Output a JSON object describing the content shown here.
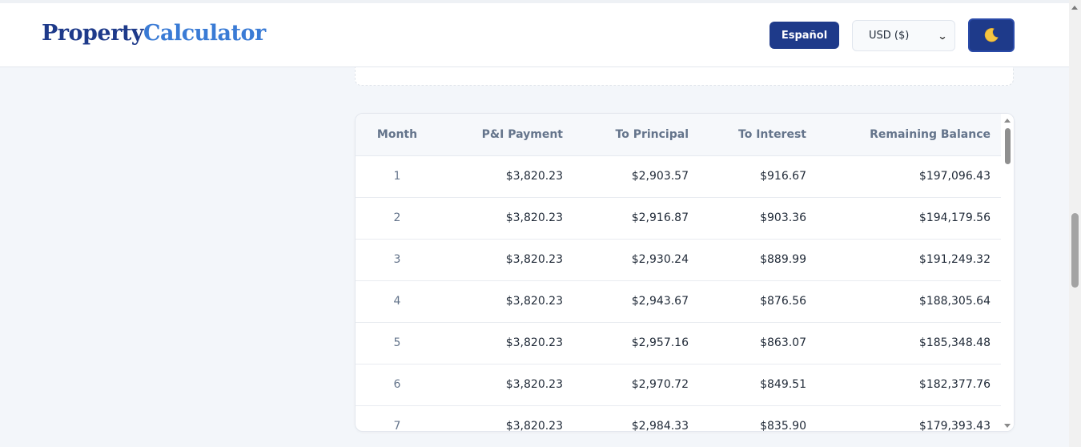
{
  "header": {
    "logo_part1": "Property",
    "logo_part2": "Calculator",
    "language_button": "Español",
    "currency_selected": "USD ($)",
    "theme_icon": "moon-icon"
  },
  "colors": {
    "primary": "#1e3a8a",
    "logo_accent": "#3a7bd5",
    "page_bg": "#f3f6fa"
  },
  "amortization": {
    "columns": [
      "Month",
      "P&I Payment",
      "To Principal",
      "To Interest",
      "Remaining Balance"
    ],
    "rows": [
      [
        "1",
        "$3,820.23",
        "$2,903.57",
        "$916.67",
        "$197,096.43"
      ],
      [
        "2",
        "$3,820.23",
        "$2,916.87",
        "$903.36",
        "$194,179.56"
      ],
      [
        "3",
        "$3,820.23",
        "$2,930.24",
        "$889.99",
        "$191,249.32"
      ],
      [
        "4",
        "$3,820.23",
        "$2,943.67",
        "$876.56",
        "$188,305.64"
      ],
      [
        "5",
        "$3,820.23",
        "$2,957.16",
        "$863.07",
        "$185,348.48"
      ],
      [
        "6",
        "$3,820.23",
        "$2,970.72",
        "$849.51",
        "$182,377.76"
      ],
      [
        "7",
        "$3,820.23",
        "$2,984.33",
        "$835.90",
        "$179,393.43"
      ]
    ]
  }
}
